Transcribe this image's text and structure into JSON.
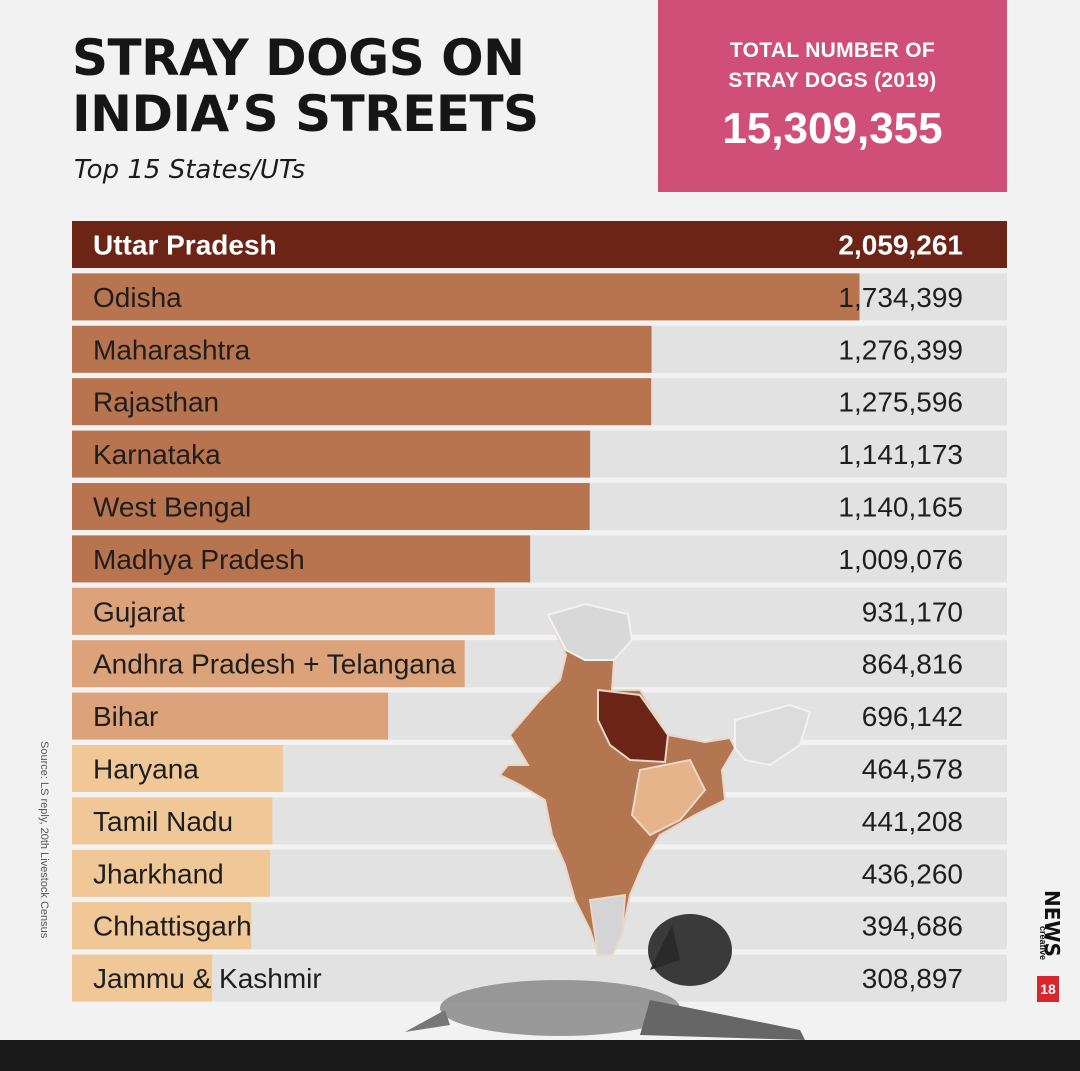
{
  "title_lines": [
    "STRAY DOGS ON",
    "INDIA’S STREETS"
  ],
  "subtitle": "Top 15 States/UTs",
  "total": {
    "label_lines": [
      "TOTAL NUMBER OF",
      "STRAY DOGS (2019)"
    ],
    "value": "15,309,355"
  },
  "source": "Source: LS reply, 20th Livestock Census",
  "logo": {
    "text": "NEWS",
    "badge": "18",
    "sub": "creative"
  },
  "colors": {
    "background": "#f2f2f2",
    "track": "#e2e2e2",
    "top_bar": "#6b2416",
    "dark_bar": "#b8734f",
    "mid_bar": "#dca37a",
    "light_bar": "#f0c897",
    "accent_box": "#cf4f78"
  },
  "chart_data": {
    "type": "bar",
    "orientation": "horizontal",
    "categories": [
      "Uttar Pradesh",
      "Odisha",
      "Maharashtra",
      "Rajasthan",
      "Karnataka",
      "West Bengal",
      "Madhya Pradesh",
      "Gujarat",
      "Andhra Pradesh + Telangana",
      "Bihar",
      "Haryana",
      "Tamil Nadu",
      "Jharkhand",
      "Chhattisgarh",
      "Jammu & Kashmir"
    ],
    "values": [
      2059261,
      1734399,
      1276399,
      1275596,
      1141173,
      1140165,
      1009076,
      931170,
      864816,
      696142,
      464578,
      441208,
      436260,
      394686,
      308897
    ],
    "value_labels": [
      "2,059,261",
      "1,734,399",
      "1,276,399",
      "1,275,596",
      "1,141,173",
      "1,140,165",
      "1,009,076",
      "931,170",
      "864,816",
      "696,142",
      "464,578",
      "441,208",
      "436,260",
      "394,686",
      "308,897"
    ],
    "xlim": [
      0,
      2059261
    ]
  }
}
